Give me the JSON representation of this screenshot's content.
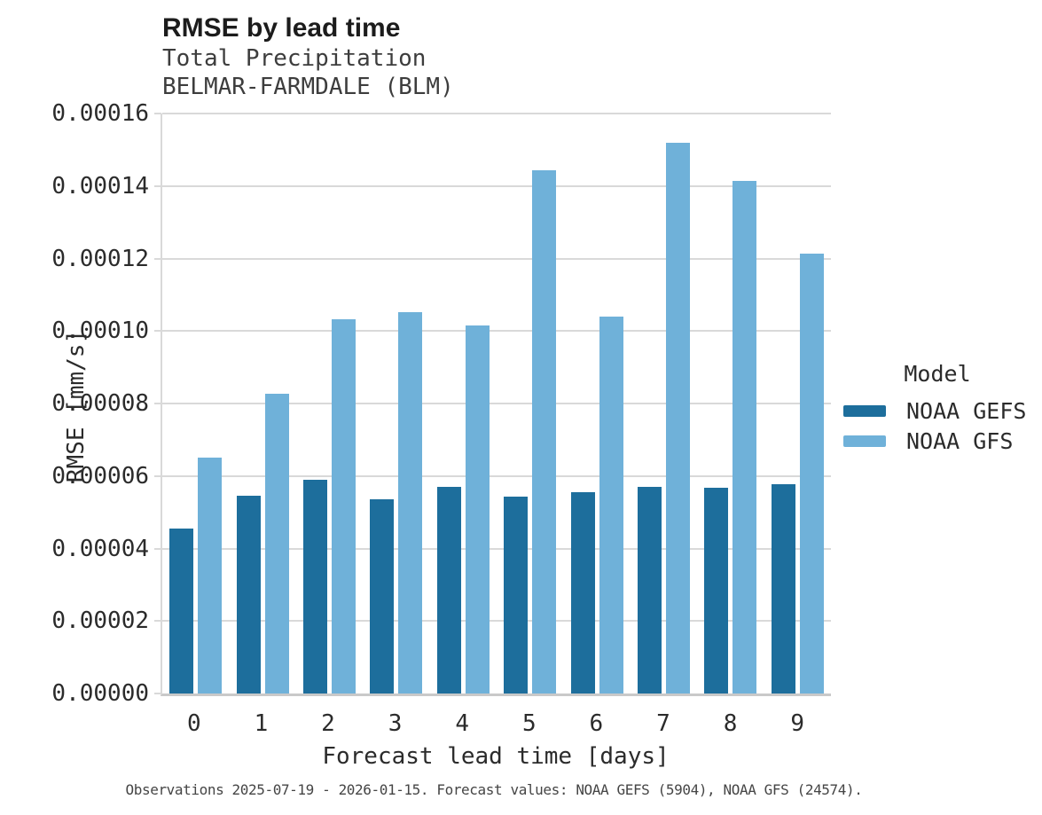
{
  "header": {
    "title": "RMSE by lead time",
    "subtitle1": "Total Precipitation",
    "subtitle2": "BELMAR-FARMDALE (BLM)"
  },
  "chart_data": {
    "type": "bar",
    "title": "RMSE by lead time",
    "subtitle": [
      "Total Precipitation",
      "BELMAR-FARMDALE (BLM)"
    ],
    "categories": [
      "0",
      "1",
      "2",
      "3",
      "4",
      "5",
      "6",
      "7",
      "8",
      "9"
    ],
    "xlabel": "Forecast lead time [days]",
    "ylabel": "RMSE [mm/s]",
    "ylim": [
      0,
      0.00016
    ],
    "ytick_step": 2e-05,
    "yticks": [
      "0.00000",
      "0.00002",
      "0.00004",
      "0.00006",
      "0.00008",
      "0.00010",
      "0.00012",
      "0.00014",
      "0.00016"
    ],
    "grid": true,
    "legend": {
      "title": "Model",
      "position": "right"
    },
    "series": [
      {
        "name": "NOAA GEFS",
        "color": "#1d6e9c",
        "values": [
          4.54e-05,
          5.45e-05,
          5.9e-05,
          5.35e-05,
          5.7e-05,
          5.42e-05,
          5.55e-05,
          5.71e-05,
          5.68e-05,
          5.77e-05
        ]
      },
      {
        "name": "NOAA GFS",
        "color": "#6fb1d9",
        "values": [
          6.52e-05,
          8.26e-05,
          0.0001032,
          0.0001053,
          0.0001015,
          0.0001444,
          0.000104,
          0.0001519,
          0.0001414,
          0.0001213
        ]
      }
    ]
  },
  "caption": "Observations 2025-07-19 - 2026-01-15. Forecast values: NOAA GEFS (5904), NOAA GFS (24574)."
}
